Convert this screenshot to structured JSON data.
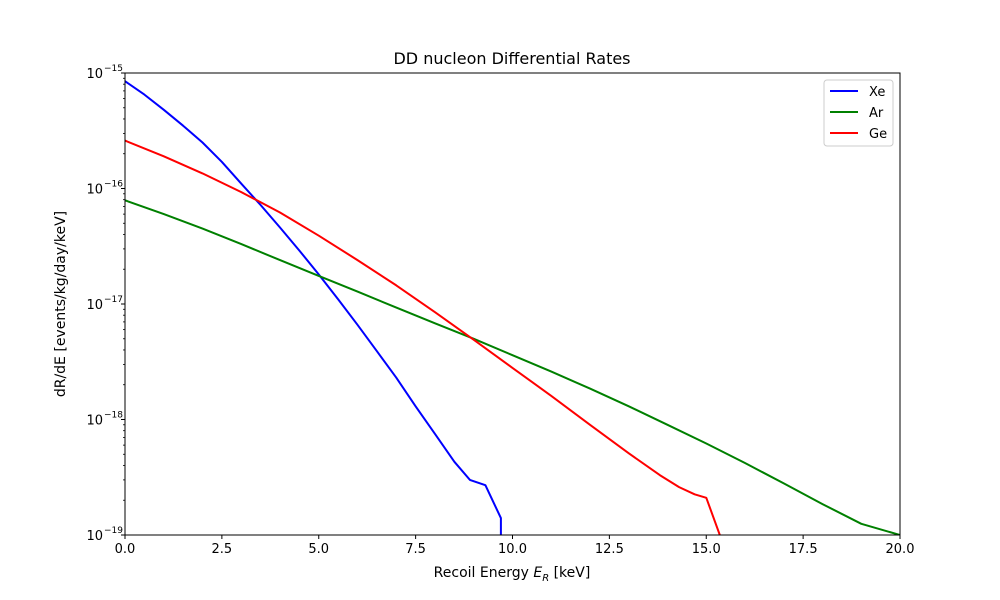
{
  "chart_data": {
    "type": "line",
    "title": "DD nucleon Differential Rates",
    "xlabel_prefix": "Recoil Energy ",
    "xlabel_var": "E",
    "xlabel_sub": "R",
    "xlabel_suffix": " [keV]",
    "ylabel": "dR/dE [events/kg/day/keV]",
    "yscale": "log",
    "xlim": [
      0,
      20
    ],
    "ylim_exp": [
      -19,
      -15
    ],
    "x_ticks": [
      0.0,
      2.5,
      5.0,
      7.5,
      10.0,
      12.5,
      15.0,
      17.5,
      20.0
    ],
    "x_tick_labels": [
      "0.0",
      "2.5",
      "5.0",
      "7.5",
      "10.0",
      "12.5",
      "15.0",
      "17.5",
      "20.0"
    ],
    "y_ticks_exp": [
      -19,
      -18,
      -17,
      -16,
      -15
    ],
    "y_tick_base": "10",
    "y_tick_exponents": [
      "−19",
      "−18",
      "−17",
      "−16",
      "−15"
    ],
    "legend_position": "top-right",
    "series": [
      {
        "name": "Xe",
        "color": "#0000ff",
        "x": [
          0,
          0.5,
          1,
          1.5,
          2,
          2.5,
          3,
          3.5,
          4,
          4.5,
          5,
          5.5,
          6,
          6.5,
          7,
          7.5,
          8,
          8.5,
          8.9,
          9.3,
          9.7,
          9.7
        ],
        "y": [
          8.5e-16,
          6.5e-16,
          4.8e-16,
          3.5e-16,
          2.5e-16,
          1.7e-16,
          1.1e-16,
          7.2e-17,
          4.6e-17,
          2.9e-17,
          1.8e-17,
          1.1e-17,
          6.6e-18,
          3.9e-18,
          2.3e-18,
          1.3e-18,
          7.5e-19,
          4.3e-19,
          3e-19,
          2.7e-19,
          1.4e-19,
          1e-19
        ]
      },
      {
        "name": "Ar",
        "color": "#008000",
        "x": [
          0,
          1,
          2,
          3,
          4,
          5,
          6,
          7,
          8,
          9,
          10,
          11,
          12,
          13,
          14,
          15,
          16,
          17,
          18,
          19,
          20
        ],
        "y": [
          7.9e-17,
          6e-17,
          4.5e-17,
          3.3e-17,
          2.4e-17,
          1.75e-17,
          1.28e-17,
          9.3e-18,
          6.8e-18,
          5e-18,
          3.6e-18,
          2.6e-18,
          1.85e-18,
          1.3e-18,
          9e-19,
          6.2e-19,
          4.2e-19,
          2.8e-19,
          1.85e-19,
          1.25e-19,
          1e-19
        ]
      },
      {
        "name": "Ge",
        "color": "#ff0000",
        "x": [
          0,
          1,
          2,
          3,
          4,
          5,
          6,
          7,
          8,
          9,
          10,
          11,
          12,
          13,
          13.8,
          14.3,
          14.7,
          15.0,
          15.35
        ],
        "y": [
          2.6e-16,
          1.9e-16,
          1.35e-16,
          9.3e-17,
          6.2e-17,
          3.9e-17,
          2.4e-17,
          1.45e-17,
          8.5e-18,
          4.9e-18,
          2.8e-18,
          1.6e-18,
          9e-19,
          5.1e-19,
          3.3e-19,
          2.6e-19,
          2.25e-19,
          2.1e-19,
          1e-19
        ]
      }
    ]
  }
}
